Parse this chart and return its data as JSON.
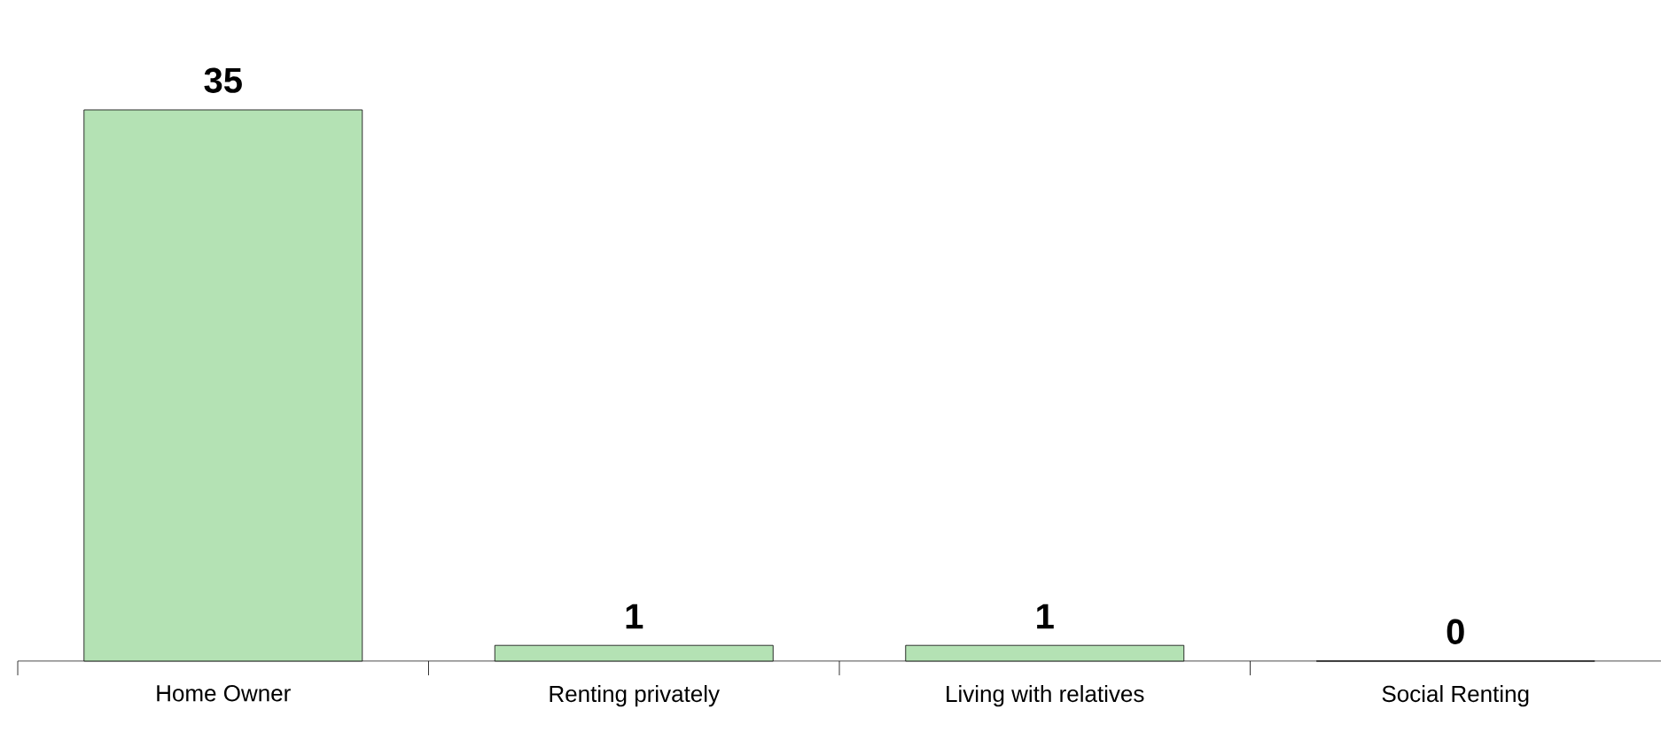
{
  "chart_data": {
    "type": "bar",
    "categories": [
      "Home Owner",
      "Renting privately",
      "Living with relatives",
      "Social Renting"
    ],
    "values": [
      35,
      1,
      1,
      0
    ],
    "color": "#b4e2b4",
    "data_labels": true
  }
}
